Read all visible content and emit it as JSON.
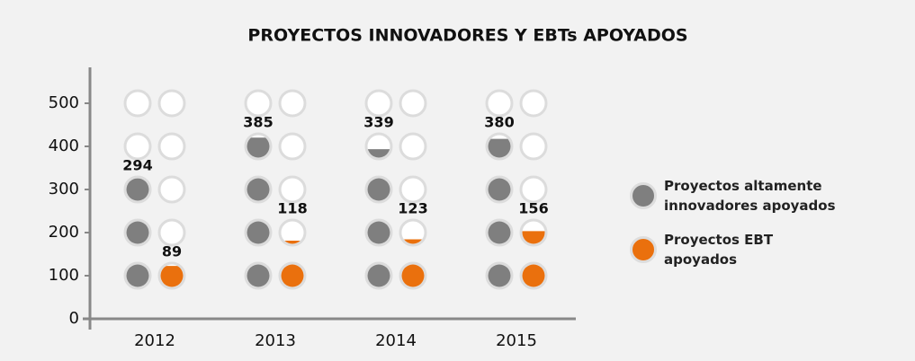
{
  "chart_data": {
    "type": "pictogram",
    "title": "PROYECTOS INNOVADORES Y EBTs APOYADOS",
    "categories": [
      "2012",
      "2013",
      "2014",
      "2015"
    ],
    "series": [
      {
        "name": "Proyectos altamente innovadores apoyados",
        "color": "#7f7f7f",
        "values": [
          294,
          385,
          339,
          380
        ]
      },
      {
        "name": "Proyectos EBT apoyados",
        "color": "#ea700d",
        "values": [
          89,
          118,
          123,
          156
        ]
      }
    ],
    "ylim": [
      0,
      500
    ],
    "yticks": [
      0,
      100,
      200,
      300,
      400,
      500
    ]
  }
}
